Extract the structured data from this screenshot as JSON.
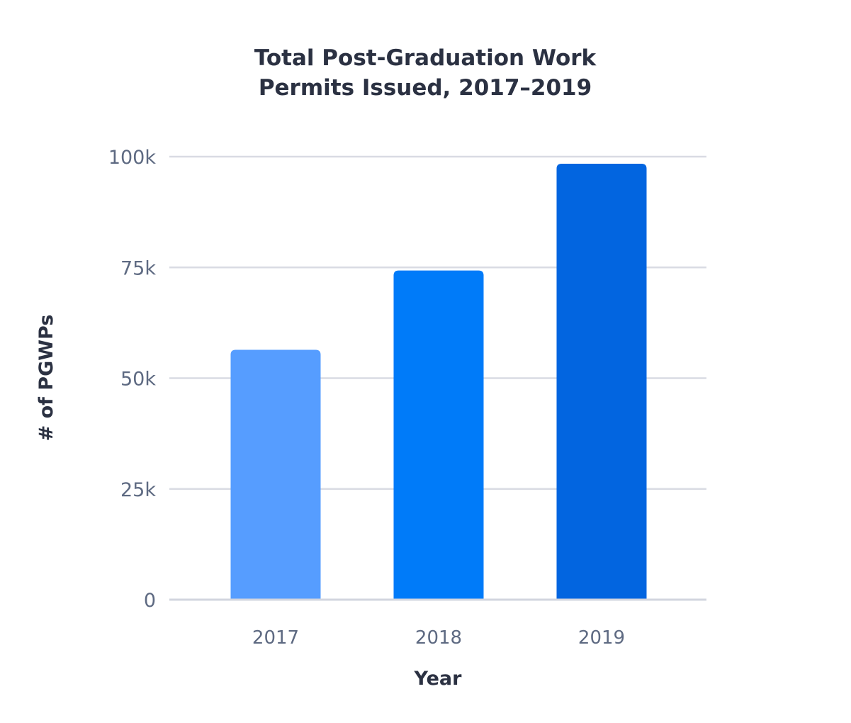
{
  "chart_data": {
    "type": "bar",
    "title": [
      "Total Post-Graduation Work",
      "Permits Issued, 2017–2019"
    ],
    "xlabel": "Year",
    "ylabel": "# of PGWPs",
    "categories": [
      "2017",
      "2018",
      "2019"
    ],
    "values": [
      56400,
      74300,
      98400
    ],
    "ylim": [
      0,
      100000
    ],
    "yticks": [
      {
        "value": 0,
        "label": "0"
      },
      {
        "value": 25000,
        "label": "25k"
      },
      {
        "value": 50000,
        "label": "50k"
      },
      {
        "value": 75000,
        "label": "75k"
      },
      {
        "value": 100000,
        "label": "100k"
      }
    ],
    "bar_colors": [
      "#569dff",
      "#007bf9",
      "#0265e0"
    ],
    "grid": true,
    "legend": "none"
  }
}
